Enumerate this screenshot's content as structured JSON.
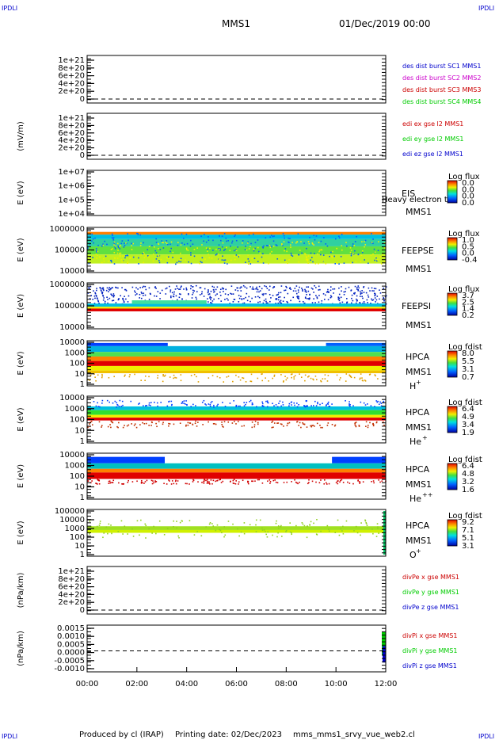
{
  "header": {
    "corner_left": "IPDLI",
    "corner_right": "IPDLI",
    "spacecraft": "MMS1",
    "date": "01/Dec/2019 00:00"
  },
  "footer": {
    "producer": "Produced by cl (IRAP)",
    "printing": "Printing date: 02/Dec/2023",
    "file": "mms_mms1_srvy_vue_web2.cl",
    "corner_left": "IPDLI",
    "corner_right": "IPDLI"
  },
  "colors": {
    "blue": "#0000cc",
    "magenta": "#cc00cc",
    "red": "#cc0000",
    "green": "#00cc00"
  },
  "chart_data": [
    {
      "type": "line",
      "panel": "des_dist",
      "ylabel": "",
      "yticks": [
        "1e+21",
        "8e+20",
        "6e+20",
        "4e+20",
        "2e+20",
        "0"
      ],
      "legend": [
        {
          "name": "des dist burst SC1 MMS1",
          "color": "#0000cc"
        },
        {
          "name": "des dist burst SC2 MMS2",
          "color": "#cc00cc"
        },
        {
          "name": "des dist burst SC3 MMS3",
          "color": "#cc0000"
        },
        {
          "name": "des dist burst SC4 MMS4",
          "color": "#00cc00"
        }
      ],
      "zero_line": true
    },
    {
      "type": "line",
      "panel": "edi",
      "ylabel": "(mV/m)",
      "yticks": [
        "1e+21",
        "8e+20",
        "6e+20",
        "4e+20",
        "2e+20",
        "0"
      ],
      "legend": [
        {
          "name": "edi ex gse l2 MMS1",
          "color": "#cc0000"
        },
        {
          "name": "edi ey gse l2 MMS1",
          "color": "#00cc00"
        },
        {
          "name": "edi ez gse l2 MMS1",
          "color": "#0000cc"
        }
      ],
      "zero_line": true
    },
    {
      "type": "heatmap",
      "panel": "eis",
      "ylabel": "E (eV)",
      "yticks": [
        "1e+07",
        "1e+06",
        "1e+05",
        "1e+04"
      ],
      "instrument": "EIS",
      "spacecraft": "MMS1",
      "overlay_text": "Heavy electron to",
      "colorbar_title": "Log flux",
      "colorbar_ticks": [
        "0.0",
        "0.0",
        "0.0",
        "0.0"
      ]
    },
    {
      "type": "heatmap",
      "panel": "feepse",
      "ylabel": "E (eV)",
      "yticks": [
        "1000000",
        "100000",
        "10000"
      ],
      "instrument": "FEEPSE",
      "spacecraft": "MMS1",
      "colorbar_title": "Log flux",
      "colorbar_ticks": [
        "1.0",
        "0.5",
        "0.0",
        "-0.4"
      ]
    },
    {
      "type": "heatmap",
      "panel": "feepsi",
      "ylabel": "E (eV)",
      "yticks": [
        "1000000",
        "100000",
        "10000"
      ],
      "instrument": "FEEPSI",
      "spacecraft": "MMS1",
      "colorbar_title": "Log flux",
      "colorbar_ticks": [
        "3.7",
        "2.5",
        "1.4",
        "0.2"
      ]
    },
    {
      "type": "heatmap",
      "panel": "hpca_h",
      "ylabel": "E (eV)",
      "yticks": [
        "10000",
        "1000",
        "100",
        "10",
        "1"
      ],
      "instrument": "HPCA",
      "spacecraft": "MMS1",
      "species": "H",
      "species_charge": "+",
      "colorbar_title": "Log fdist",
      "colorbar_ticks": [
        "8.0",
        "5.5",
        "3.1",
        "0.7"
      ]
    },
    {
      "type": "heatmap",
      "panel": "hpca_he",
      "ylabel": "E (eV)",
      "yticks": [
        "10000",
        "1000",
        "100",
        "10",
        "1"
      ],
      "instrument": "HPCA",
      "spacecraft": "MMS1",
      "species": "He",
      "species_charge": "+",
      "colorbar_title": "Log fdist",
      "colorbar_ticks": [
        "6.4",
        "4.9",
        "3.4",
        "1.9"
      ]
    },
    {
      "type": "heatmap",
      "panel": "hpca_hepp",
      "ylabel": "E (eV)",
      "yticks": [
        "10000",
        "1000",
        "100",
        "10",
        "1"
      ],
      "instrument": "HPCA",
      "spacecraft": "MMS1",
      "species": "He",
      "species_charge": "++",
      "colorbar_title": "Log fdist",
      "colorbar_ticks": [
        "6.4",
        "4.8",
        "3.2",
        "1.6"
      ]
    },
    {
      "type": "heatmap",
      "panel": "hpca_o",
      "ylabel": "E (eV)",
      "yticks": [
        "100000",
        "10000",
        "1000",
        "100",
        "10",
        "1"
      ],
      "instrument": "HPCA",
      "spacecraft": "MMS1",
      "species": "O",
      "species_charge": "+",
      "colorbar_title": "Log fdist",
      "colorbar_ticks": [
        "9.2",
        "7.1",
        "5.1",
        "3.1"
      ]
    },
    {
      "type": "line",
      "panel": "divpe",
      "ylabel": "(nPa/km)",
      "yticks": [
        "1e+21",
        "8e+20",
        "6e+20",
        "4e+20",
        "2e+20",
        "0"
      ],
      "legend": [
        {
          "name": "divPe x gse MMS1",
          "color": "#cc0000"
        },
        {
          "name": "divPe y gse MMS1",
          "color": "#00cc00"
        },
        {
          "name": "divPe z gse MMS1",
          "color": "#0000cc"
        }
      ],
      "zero_line": true
    },
    {
      "type": "line",
      "panel": "divpi",
      "ylabel": "(nPa/km)",
      "yticks": [
        "0.0015",
        "0.0010",
        "0.0005",
        "0.0000",
        "-0.0005",
        "-0.0010"
      ],
      "ylim": [
        -0.0012,
        0.0016
      ],
      "legend": [
        {
          "name": "divPi x gse MMS1",
          "color": "#cc0000"
        },
        {
          "name": "divPi y gse MMS1",
          "color": "#00cc00"
        },
        {
          "name": "divPi z gse MMS1",
          "color": "#0000cc"
        }
      ],
      "zero_line": true
    }
  ],
  "x_axis": {
    "ticks": [
      "00:00",
      "02:00",
      "04:00",
      "06:00",
      "08:00",
      "10:00",
      "12:00"
    ]
  }
}
